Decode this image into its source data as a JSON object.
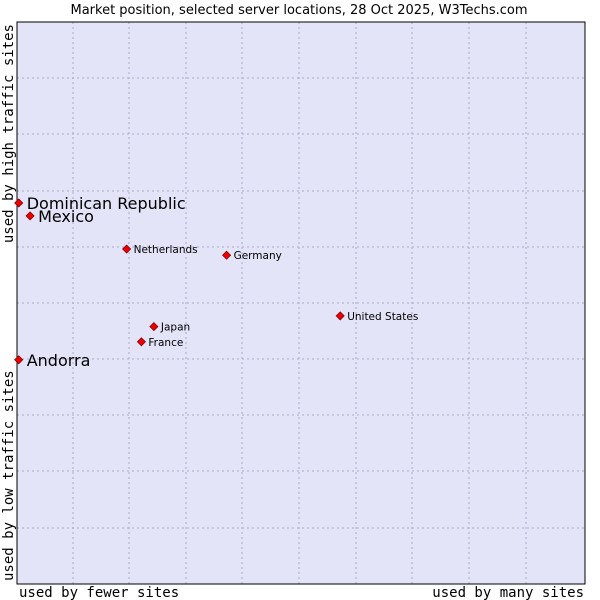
{
  "chart_data": {
    "type": "scatter",
    "title": "Market position, selected server locations, 28 Oct 2025, W3Techs.com",
    "xlabel_left": "used by fewer sites",
    "xlabel_right": "used by many sites",
    "ylabel_bottom": "used by low traffic sites",
    "ylabel_top": "used by high traffic sites",
    "grid": true,
    "xlim": [
      0,
      100
    ],
    "ylim": [
      0,
      100
    ],
    "colors": {
      "plot_background": "#e4e4f8",
      "grid": "#aaaacc",
      "marker": "#ee0000",
      "marker_outline": "#880000",
      "border": "#000000"
    },
    "points": [
      {
        "label": "Dominican Republic",
        "x": 0.3,
        "y": 67.8,
        "label_size": "large"
      },
      {
        "label": "Mexico",
        "x": 2.3,
        "y": 65.5,
        "label_size": "large"
      },
      {
        "label": "Netherlands",
        "x": 19.3,
        "y": 59.6,
        "label_size": "small"
      },
      {
        "label": "Germany",
        "x": 36.9,
        "y": 58.5,
        "label_size": "small"
      },
      {
        "label": "United States",
        "x": 56.9,
        "y": 47.7,
        "label_size": "small"
      },
      {
        "label": "Japan",
        "x": 24.1,
        "y": 45.8,
        "label_size": "small"
      },
      {
        "label": "France",
        "x": 21.9,
        "y": 43.1,
        "label_size": "small"
      },
      {
        "label": "Andorra",
        "x": 0.3,
        "y": 39.9,
        "label_size": "large"
      }
    ]
  }
}
